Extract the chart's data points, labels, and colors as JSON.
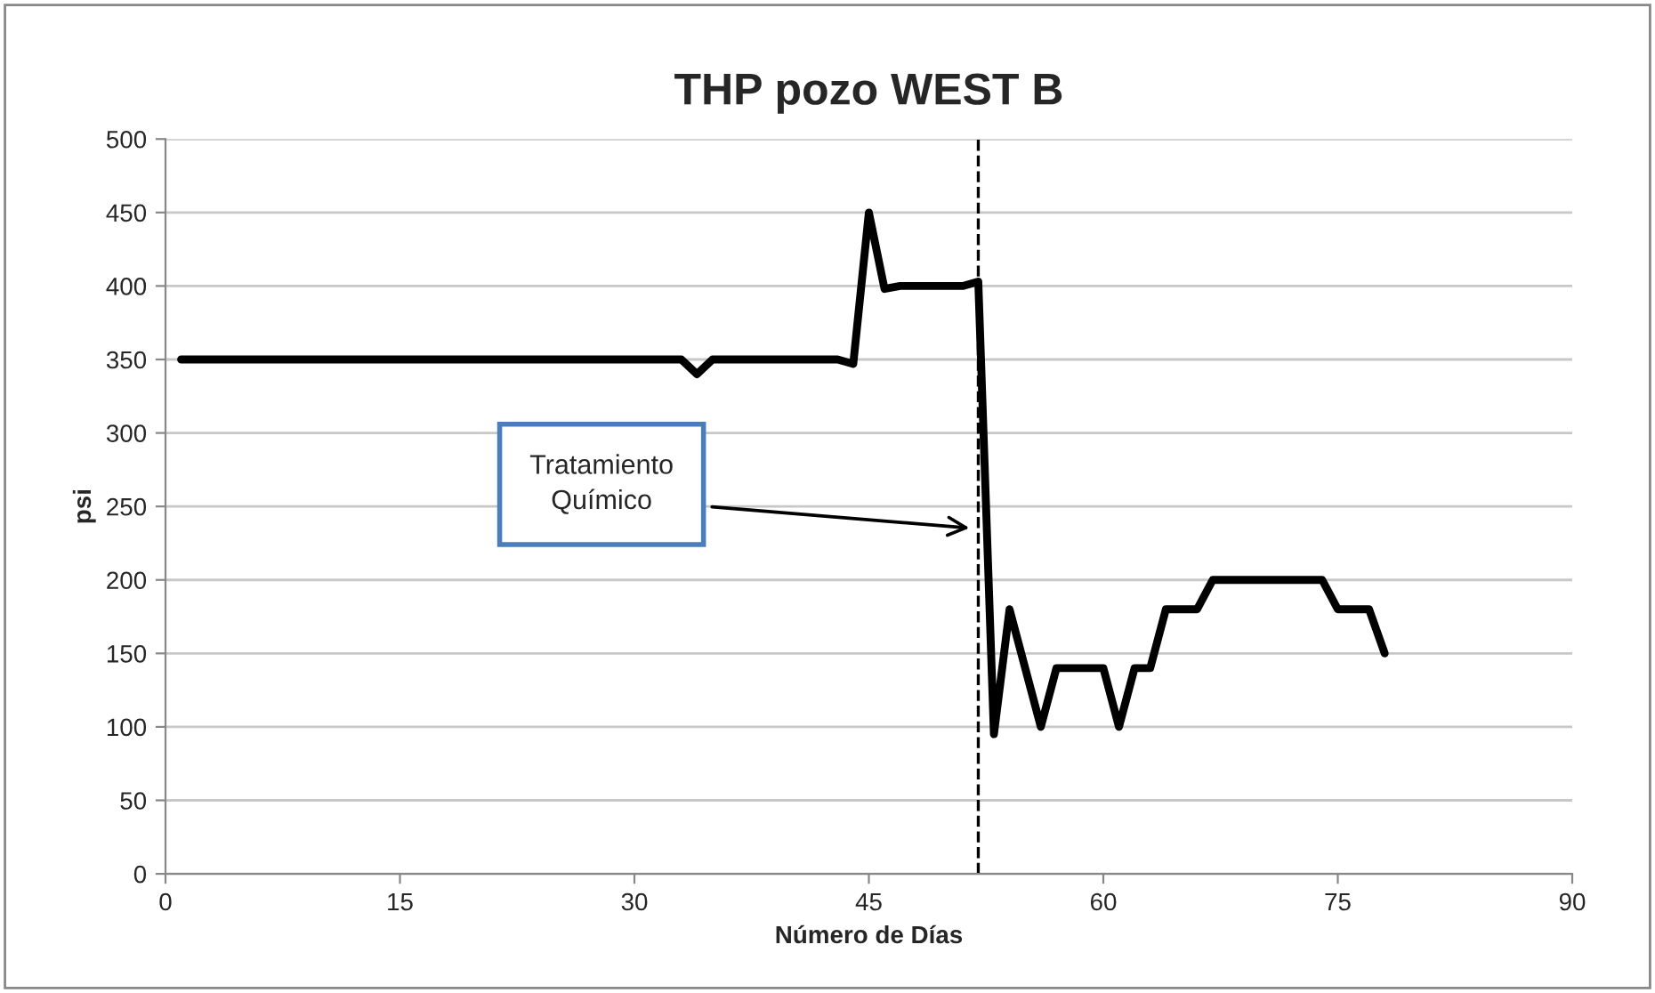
{
  "chart_data": {
    "type": "line",
    "title": "THP pozo WEST B",
    "xlabel": "Número de Días",
    "ylabel": "psi",
    "x": [
      1,
      2,
      3,
      4,
      5,
      6,
      7,
      8,
      9,
      10,
      11,
      12,
      13,
      14,
      15,
      16,
      17,
      18,
      19,
      20,
      21,
      22,
      23,
      24,
      25,
      26,
      27,
      28,
      29,
      30,
      31,
      32,
      33,
      34,
      35,
      36,
      37,
      38,
      39,
      40,
      41,
      42,
      43,
      44,
      45,
      46,
      47,
      48,
      49,
      50,
      51,
      52,
      53,
      54,
      55,
      56,
      57,
      58,
      59,
      60,
      61,
      62,
      63,
      64,
      65,
      66,
      67,
      68,
      69,
      70,
      71,
      72,
      73,
      74,
      75,
      76,
      77,
      78
    ],
    "series": [
      {
        "color": "#000000",
        "values": [
          350,
          350,
          350,
          350,
          350,
          350,
          350,
          350,
          350,
          350,
          350,
          350,
          350,
          350,
          350,
          350,
          350,
          350,
          350,
          350,
          350,
          350,
          350,
          350,
          350,
          350,
          350,
          350,
          350,
          350,
          350,
          350,
          350,
          340,
          350,
          350,
          350,
          350,
          350,
          350,
          350,
          350,
          350,
          347,
          450,
          398,
          400,
          400,
          400,
          400,
          400,
          403,
          95,
          180,
          140,
          100,
          140,
          140,
          140,
          140,
          100,
          140,
          140,
          180,
          180,
          180,
          200,
          200,
          200,
          200,
          200,
          200,
          200,
          200,
          180,
          180,
          180,
          150
        ]
      }
    ],
    "xlim": [
      0,
      90
    ],
    "xticks": [
      0,
      15,
      30,
      45,
      60,
      75,
      90
    ],
    "ylim": [
      0,
      500
    ],
    "yticks": [
      0,
      50,
      100,
      150,
      200,
      250,
      300,
      350,
      400,
      450,
      500
    ],
    "grid": "y",
    "marker": "none",
    "line_style": "solid",
    "ref_lines": [
      {
        "axis": "x",
        "value": 52,
        "color": "#000000",
        "line_style": "dashed"
      }
    ],
    "annotations": [
      "Tratamiento\nQuímico"
    ]
  }
}
